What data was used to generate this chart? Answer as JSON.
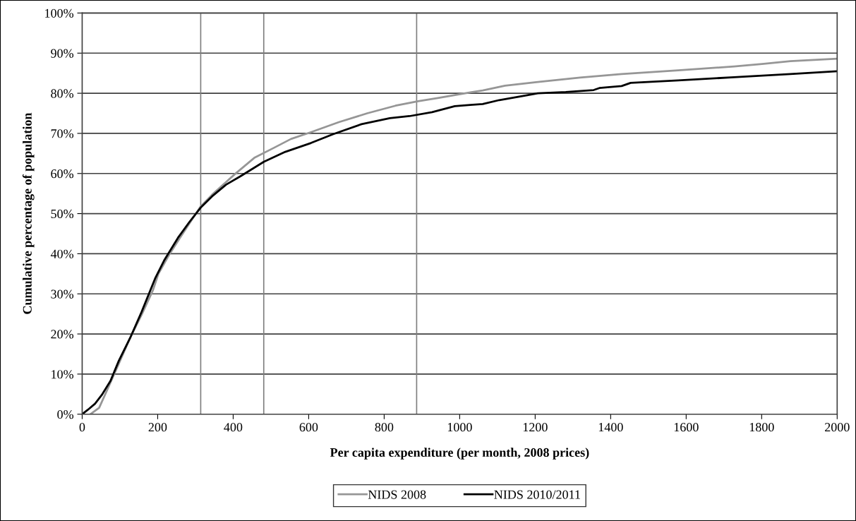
{
  "chart_data": {
    "type": "line",
    "xlabel": "Per capita expenditure (per month, 2008 prices)",
    "ylabel": "Cumulative percentage of population",
    "xlim": [
      0,
      2000
    ],
    "xticks": [
      0,
      200,
      400,
      600,
      800,
      1000,
      1200,
      1400,
      1600,
      1800,
      2000
    ],
    "ylim": [
      0,
      100
    ],
    "yticks": [
      {
        "value": 0,
        "label": "0%"
      },
      {
        "value": 10,
        "label": "10%"
      },
      {
        "value": 20,
        "label": "20%"
      },
      {
        "value": 30,
        "label": "30%"
      },
      {
        "value": 40,
        "label": "40%"
      },
      {
        "value": 50,
        "label": "50%"
      },
      {
        "value": 60,
        "label": "60%"
      },
      {
        "value": 70,
        "label": "70%"
      },
      {
        "value": 80,
        "label": "80%"
      },
      {
        "value": 90,
        "label": "90%"
      },
      {
        "value": 100,
        "label": "100%"
      }
    ],
    "grid": "y",
    "legend": "bottom",
    "line_style": "solid",
    "marker": "none",
    "ref_lines": [
      {
        "axis": "x",
        "value": 314,
        "color": "#7f7f7f"
      },
      {
        "axis": "x",
        "value": 481,
        "color": "#7f7f7f"
      },
      {
        "axis": "x",
        "value": 886,
        "color": "#7f7f7f"
      }
    ],
    "series": [
      {
        "name": "NIDS 2008",
        "color": "#969696",
        "x": [
          22,
          45,
          67,
          97,
          127,
          157,
          187,
          202,
          232,
          269,
          314,
          344,
          404,
          456,
          508,
          553,
          606,
          680,
          755,
          830,
          890,
          942,
          1028,
          1061,
          1120,
          1207,
          1319,
          1429,
          1579,
          1727,
          1801,
          1876,
          1998
        ],
        "values": [
          0,
          1.6,
          6.2,
          12.6,
          19,
          24.7,
          30.8,
          35,
          40,
          45.4,
          51.8,
          54.7,
          59.8,
          63.9,
          66.4,
          68.6,
          70.3,
          72.8,
          75,
          76.9,
          78,
          78.8,
          80.2,
          80.7,
          81.9,
          82.8,
          83.9,
          84.8,
          85.7,
          86.7,
          87.3,
          88,
          88.6
        ]
      },
      {
        "name": "NIDS 2010/2011",
        "color": "#000000",
        "x": [
          0,
          15,
          34,
          52,
          75,
          97,
          127,
          157,
          194,
          217,
          254,
          284,
          314,
          344,
          381,
          419,
          481,
          538,
          606,
          665,
          740,
          815,
          867,
          927,
          987,
          1028,
          1061,
          1105,
          1179,
          1207,
          1281,
          1355,
          1370,
          1429,
          1453,
          1579,
          1727,
          1876,
          1998
        ],
        "values": [
          0,
          1.1,
          2.6,
          4.8,
          8.3,
          13.3,
          19,
          25.4,
          34,
          38.3,
          44,
          47.9,
          51.5,
          54.3,
          57.2,
          59.3,
          62.9,
          65.4,
          67.6,
          69.8,
          72.3,
          73.8,
          74.3,
          75.3,
          76.8,
          77.1,
          77.3,
          78.3,
          79.5,
          80,
          80.3,
          80.8,
          81.3,
          81.8,
          82.6,
          83.2,
          84,
          84.8,
          85.5
        ]
      }
    ]
  }
}
